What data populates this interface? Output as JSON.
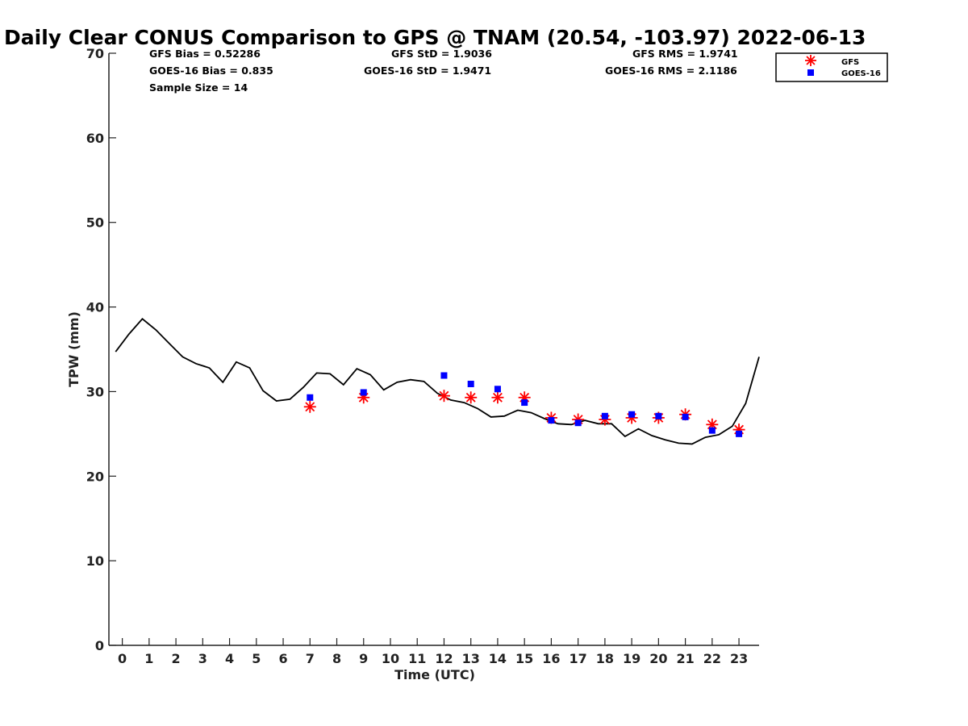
{
  "chart_data": {
    "type": "scatter",
    "title": "Daily Clear CONUS Comparison to GPS @ TNAM (20.54, -103.97) 2022-06-13",
    "xlabel": "Time (UTC)",
    "ylabel": "TPW (mm)",
    "xlim": [
      -0.5,
      23.75
    ],
    "ylim": [
      0,
      70
    ],
    "x_ticks": [
      "0",
      "1",
      "2",
      "3",
      "4",
      "5",
      "6",
      "7",
      "8",
      "9",
      "10",
      "11",
      "12",
      "13",
      "14",
      "15",
      "16",
      "17",
      "18",
      "19",
      "20",
      "21",
      "22",
      "23"
    ],
    "y_ticks": [
      "0",
      "10",
      "20",
      "30",
      "40",
      "50",
      "60",
      "70"
    ],
    "grid": false,
    "legend_position": "top-right",
    "stats": {
      "gfs_bias": "GFS Bias = 0.52286",
      "goes_bias": "GOES-16 Bias = 0.835",
      "sample_size": "Sample Size = 14",
      "gfs_std": "GFS StD = 1.9036",
      "goes_std": "GOES-16 StD = 1.9471",
      "gfs_rms": "GFS RMS = 1.9741",
      "goes_rms": "GOES-16 RMS = 2.1186"
    },
    "series": [
      {
        "name": "GPS",
        "style": "line",
        "color": "#000000",
        "x": [
          -0.25,
          0.25,
          0.75,
          1.25,
          1.75,
          2.25,
          2.75,
          3.25,
          3.75,
          4.25,
          4.75,
          5.25,
          5.75,
          6.25,
          6.75,
          7.25,
          7.75,
          8.25,
          8.75,
          9.25,
          9.75,
          10.25,
          10.75,
          11.25,
          11.75,
          12.25,
          12.75,
          13.25,
          13.75,
          14.25,
          14.75,
          15.25,
          15.75,
          16.25,
          16.75,
          17.25,
          17.75,
          18.25,
          18.75,
          19.25,
          19.75,
          20.25,
          20.75,
          21.25,
          21.75,
          22.25,
          22.75,
          23.25,
          23.75
        ],
        "y": [
          34.7,
          36.8,
          38.6,
          37.3,
          35.7,
          34.1,
          33.3,
          32.8,
          31.1,
          33.5,
          32.8,
          30.1,
          28.9,
          29.1,
          30.5,
          32.2,
          32.1,
          30.8,
          32.7,
          32.0,
          30.2,
          31.1,
          31.4,
          31.2,
          29.8,
          29.0,
          28.7,
          28.0,
          27.0,
          27.1,
          27.8,
          27.5,
          26.8,
          26.2,
          26.1,
          26.6,
          26.2,
          26.2,
          24.7,
          25.6,
          24.8,
          24.3,
          23.9,
          23.8,
          24.6,
          24.9,
          25.9,
          28.6,
          34.1
        ]
      },
      {
        "name": "GFS",
        "style": "asterisk",
        "color": "#ff0000",
        "x": [
          7,
          9,
          12,
          13,
          14,
          15,
          16,
          17,
          18,
          19,
          20,
          21,
          22,
          23
        ],
        "y": [
          28.2,
          29.3,
          29.5,
          29.3,
          29.3,
          29.3,
          26.9,
          26.7,
          26.7,
          26.9,
          26.9,
          27.3,
          26.1,
          25.5
        ]
      },
      {
        "name": "GOES-16",
        "style": "square",
        "color": "#0000ff",
        "x": [
          7,
          9,
          12,
          13,
          14,
          15,
          16,
          17,
          18,
          19,
          20,
          21,
          22,
          23
        ],
        "y": [
          29.3,
          29.9,
          31.9,
          30.9,
          30.3,
          28.7,
          26.6,
          26.3,
          27.1,
          27.3,
          27.1,
          27.0,
          25.4,
          25.0
        ]
      }
    ]
  }
}
